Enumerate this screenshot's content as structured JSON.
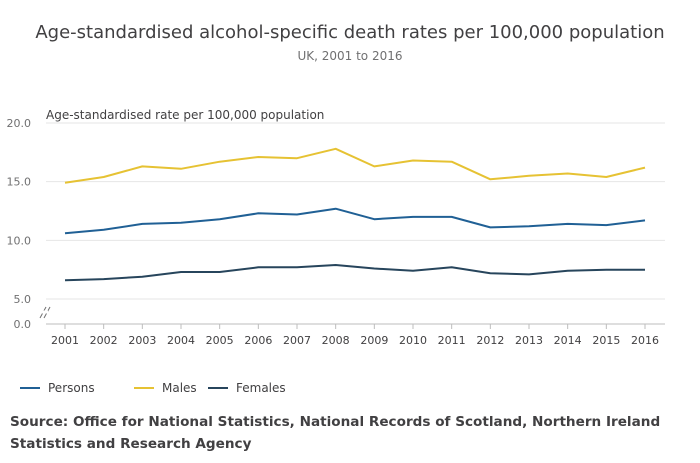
{
  "chart_data": {
    "type": "line",
    "title": "Age-standardised alcohol-specific death rates per 100,000  population",
    "subtitle": "UK, 2001 to 2016",
    "ylabel": "Age-standardised rate per 100,000 population",
    "xlabel": "",
    "x": [
      "2001",
      "2002",
      "2003",
      "2004",
      "2005",
      "2006",
      "2007",
      "2008",
      "2009",
      "2010",
      "2011",
      "2012",
      "2013",
      "2014",
      "2015",
      "2016"
    ],
    "ylim": [
      5,
      20
    ],
    "ybreak_min": 0,
    "yticks": [
      "20.0",
      "15.0",
      "10.0",
      "5.0"
    ],
    "ybreak_tick": "0.0",
    "grid": true,
    "legend_position": "bottom-left",
    "series": [
      {
        "name": "Persons",
        "color": "#206095",
        "values": [
          10.6,
          10.9,
          11.4,
          11.5,
          11.8,
          12.3,
          12.2,
          12.7,
          11.8,
          12.0,
          12.0,
          11.1,
          11.2,
          11.4,
          11.3,
          11.7
        ]
      },
      {
        "name": "Males",
        "color": "#e6c233",
        "values": [
          14.9,
          15.4,
          16.3,
          16.1,
          16.7,
          17.1,
          17.0,
          17.8,
          16.3,
          16.8,
          16.7,
          15.2,
          15.5,
          15.7,
          15.4,
          16.2
        ]
      },
      {
        "name": "Females",
        "color": "#27455c",
        "values": [
          6.6,
          6.7,
          6.9,
          7.3,
          7.3,
          7.7,
          7.7,
          7.9,
          7.6,
          7.4,
          7.7,
          7.2,
          7.1,
          7.4,
          7.5,
          7.5
        ]
      }
    ]
  },
  "source": "Source: Office for National Statistics, National Records of Scotland, Northern Ireland Statistics and Research Agency"
}
